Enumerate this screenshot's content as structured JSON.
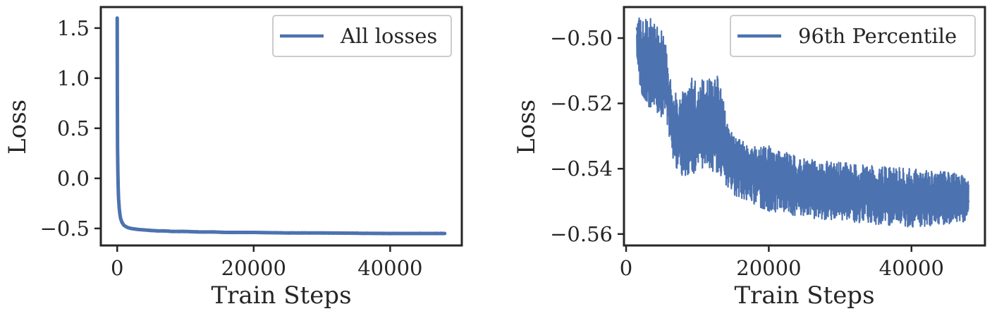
{
  "chart_data": [
    {
      "type": "line",
      "title": "",
      "xlabel": "Train Steps",
      "ylabel": "Loss",
      "xlim": [
        -2400,
        50500
      ],
      "ylim": [
        -0.67,
        1.71
      ],
      "xticks": [
        0,
        20000,
        40000
      ],
      "xtick_labels": [
        "0",
        "20000",
        "40000"
      ],
      "yticks": [
        1.5,
        1.0,
        0.5,
        0.0,
        -0.5
      ],
      "ytick_labels": [
        "1.5",
        "1.0",
        "0.5",
        "0.0",
        "−0.5"
      ],
      "legend_position": "upper right",
      "color": "#4c72b0",
      "series": [
        {
          "name": "All losses",
          "x": [
            0,
            20,
            50,
            100,
            150,
            200,
            300,
            400,
            500,
            700,
            1000,
            1500,
            2000,
            3000,
            4000,
            5000,
            6000,
            7000,
            8000,
            10000,
            12000,
            14000,
            16000,
            20000,
            25000,
            30000,
            35000,
            40000,
            45000,
            48000
          ],
          "y": [
            1.6,
            0.9,
            0.3,
            0.05,
            -0.1,
            -0.2,
            -0.3,
            -0.36,
            -0.4,
            -0.44,
            -0.47,
            -0.49,
            -0.5,
            -0.51,
            -0.515,
            -0.52,
            -0.525,
            -0.525,
            -0.53,
            -0.53,
            -0.535,
            -0.535,
            -0.54,
            -0.54,
            -0.545,
            -0.545,
            -0.548,
            -0.55,
            -0.55,
            -0.55
          ]
        }
      ]
    },
    {
      "type": "line",
      "title": "",
      "xlabel": "Train Steps",
      "ylabel": "Loss",
      "xlim": [
        -300,
        50300
      ],
      "ylim": [
        -0.5635,
        -0.4905
      ],
      "xticks": [
        0,
        20000,
        40000
      ],
      "xtick_labels": [
        "0",
        "20000",
        "40000"
      ],
      "yticks": [
        -0.5,
        -0.52,
        -0.54,
        -0.56
      ],
      "ytick_labels": [
        "−0.50",
        "−0.52",
        "−0.54",
        "−0.56"
      ],
      "legend_position": "upper right",
      "color": "#4c72b0",
      "series": [
        {
          "name": "96th Percentile",
          "x": [
            1500,
            2500,
            3500,
            4500,
            5500,
            6000,
            6500,
            7500,
            9000,
            11000,
            13000,
            14000,
            15000,
            17000,
            20000,
            25000,
            30000,
            35000,
            40000,
            45000,
            48000
          ],
          "y": [
            -0.497,
            -0.505,
            -0.507,
            -0.51,
            -0.512,
            -0.52,
            -0.53,
            -0.532,
            -0.534,
            -0.533,
            -0.532,
            -0.537,
            -0.54,
            -0.542,
            -0.545,
            -0.547,
            -0.548,
            -0.549,
            -0.55,
            -0.55,
            -0.55
          ],
          "band_low": [
            -0.51,
            -0.52,
            -0.522,
            -0.525,
            -0.525,
            -0.53,
            -0.538,
            -0.542,
            -0.543,
            -0.541,
            -0.541,
            -0.545,
            -0.548,
            -0.55,
            -0.553,
            -0.555,
            -0.556,
            -0.557,
            -0.558,
            -0.557,
            -0.556
          ],
          "band_high": [
            -0.4935,
            -0.4935,
            -0.494,
            -0.496,
            -0.4995,
            -0.51,
            -0.516,
            -0.518,
            -0.512,
            -0.513,
            -0.511,
            -0.524,
            -0.53,
            -0.532,
            -0.533,
            -0.537,
            -0.538,
            -0.539,
            -0.54,
            -0.541,
            -0.542
          ]
        }
      ]
    }
  ]
}
